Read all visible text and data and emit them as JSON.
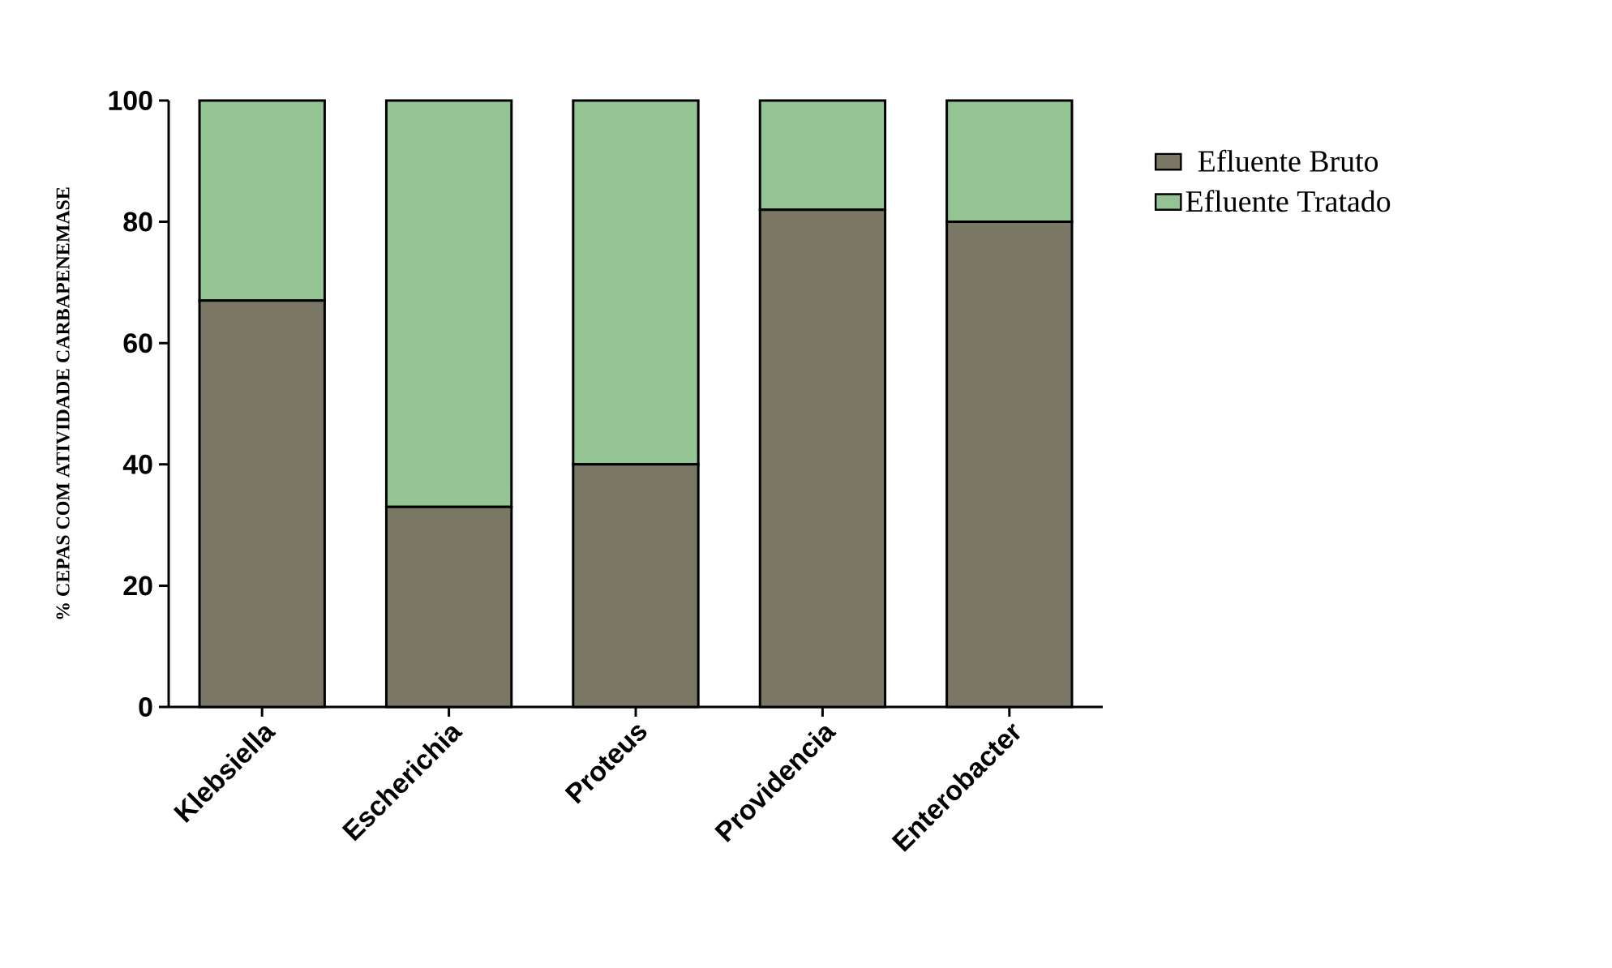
{
  "chart_data": {
    "type": "bar",
    "stacked": true,
    "ylabel": "% CEPAS COM ATIVIDADE CARBAPENEMASE",
    "categories": [
      "Klebsiella",
      "Escherichia",
      "Proteus",
      "Providencia",
      "Enterobacter"
    ],
    "series": [
      {
        "name": "Efluente Bruto",
        "color": "#7a7864",
        "values": [
          67,
          33,
          40,
          82,
          80
        ]
      },
      {
        "name": "Efluente Tratado",
        "color": "#94c494",
        "values": [
          33,
          67,
          60,
          18,
          20
        ]
      }
    ],
    "ylim": [
      0,
      100
    ],
    "yticks": [
      0,
      20,
      40,
      60,
      80,
      100
    ],
    "grid": false,
    "legend": "right"
  }
}
